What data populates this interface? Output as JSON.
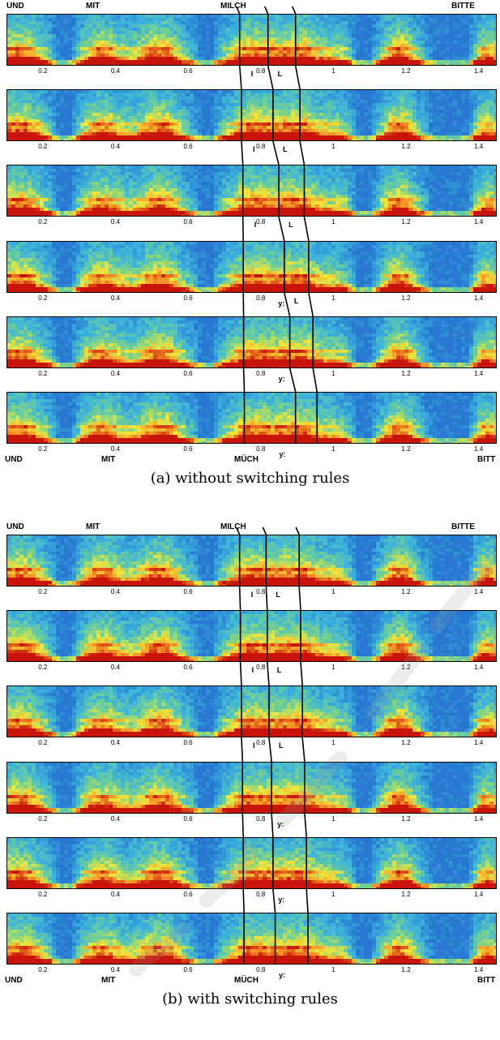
{
  "figure_a": {
    "caption": "(a) without switching rules",
    "top_words": [
      "UND",
      "MIT",
      "MILCH",
      "BITTE"
    ],
    "bottom_words": [
      "UND",
      "MIT",
      "MÜCH",
      "BITT"
    ],
    "rows": [
      {
        "phonemes": [
          "I",
          "L"
        ]
      },
      {
        "phonemes": [
          "I",
          "L"
        ]
      },
      {
        "phonemes": [
          "I",
          "L"
        ]
      },
      {
        "phonemes": [
          "y:",
          "L"
        ]
      },
      {
        "phonemes": [
          "y:"
        ]
      },
      {
        "phonemes": [
          "y:"
        ]
      }
    ]
  },
  "figure_b": {
    "caption": "(b) with switching rules",
    "top_words": [
      "UND",
      "MIT",
      "MILCH",
      "BITTE"
    ],
    "bottom_words": [
      "UND",
      "MIT",
      "MÜCH",
      "BITT"
    ],
    "rows": [
      {
        "phonemes": [
          "I",
          "L"
        ]
      },
      {
        "phonemes": [
          "I",
          "L"
        ]
      },
      {
        "phonemes": [
          "I",
          "L"
        ]
      },
      {
        "phonemes": [
          "y:"
        ]
      },
      {
        "phonemes": [
          "y:"
        ]
      },
      {
        "phonemes": [
          "y:"
        ]
      }
    ]
  },
  "time_axis": {
    "x_range": [
      0.1,
      1.45
    ],
    "ticks": [
      "0.2",
      "0.4",
      "0.6",
      "0.8",
      "1",
      "1.2",
      "1.4"
    ]
  },
  "colors": {
    "spectrogram_low": "#3fa9d9",
    "spectrogram_mid": "#f2e83a",
    "spectrogram_high": "#e83a1a",
    "lines": "#000000"
  }
}
